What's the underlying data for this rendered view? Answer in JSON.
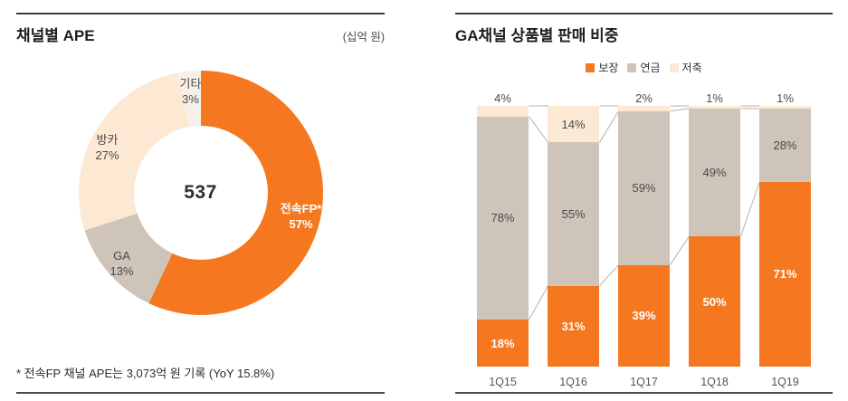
{
  "chart_data": [
    {
      "type": "pie",
      "subtype": "donut",
      "title": "채널별 APE",
      "unit_label": "(십억 원)",
      "center_total": "537",
      "footnote": "* 전속FP 채널 APE는 3,073억 원 기록 (YoY 15.8%)",
      "start_angle_deg": 0,
      "direction": "clockwise",
      "slices": [
        {
          "label": "전속FP*",
          "value": 57,
          "color": "#f57820",
          "label_color": "#ffffff"
        },
        {
          "label": "GA",
          "value": 13,
          "color": "#cec4b9",
          "label_color": "#4a4a4a"
        },
        {
          "label": "방카",
          "value": 27,
          "color": "#fce8d3",
          "label_color": "#4a4a4a"
        },
        {
          "label": "기타",
          "value": 3,
          "color": "#f6f0e8",
          "label_color": "#4a4a4a"
        }
      ]
    },
    {
      "type": "bar",
      "subtype": "stacked-100",
      "title": "GA채널 상품별 판매 비중",
      "categories": [
        "1Q15",
        "1Q16",
        "1Q17",
        "1Q18",
        "1Q19"
      ],
      "series": [
        {
          "name": "보장",
          "color": "#f57820",
          "label_color": "#ffffff",
          "values": [
            18,
            31,
            39,
            50,
            71
          ]
        },
        {
          "name": "연금",
          "color": "#cec4b9",
          "label_color": "#4a4a4a",
          "values": [
            78,
            55,
            59,
            49,
            28
          ]
        },
        {
          "name": "저축",
          "color": "#fce8d3",
          "label_color": "#4a4a4a",
          "values": [
            4,
            14,
            2,
            1,
            1
          ]
        }
      ],
      "ylim": [
        0,
        100
      ],
      "value_suffix": "%",
      "legend_position": "top",
      "grid": false,
      "connector_line_color": "#b9b0a5"
    }
  ]
}
